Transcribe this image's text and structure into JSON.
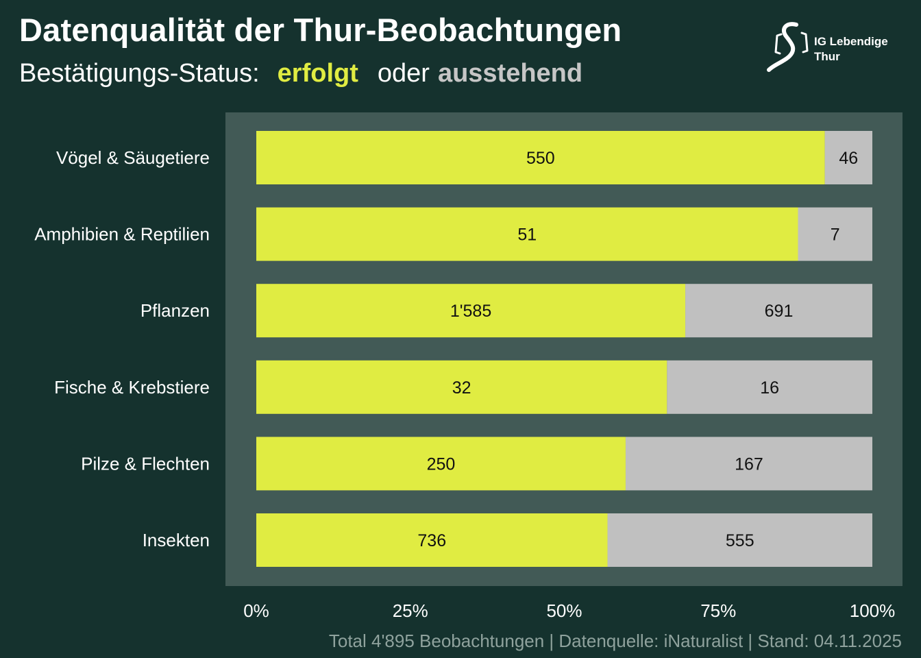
{
  "header": {
    "title": "Datenqualität der Thur-Beobachtungen",
    "subtitle_prefix": "Bestätigungs-Status:",
    "subtitle_confirmed": "erfolgt",
    "subtitle_or": "oder",
    "subtitle_pending": "ausstehend"
  },
  "logo": {
    "line1": "IG Lebendige",
    "line2": "Thur",
    "icon": "river-s-logo-icon"
  },
  "colors": {
    "background": "#15322e",
    "panel": "#425a56",
    "confirmed": "#e0ec42",
    "pending": "#c0c0c0",
    "footer_text": "#8fa29d"
  },
  "chart_data": {
    "type": "bar",
    "orientation": "horizontal",
    "stacked": "percent",
    "categories": [
      "Vögel & Säugetiere",
      "Amphibien & Reptilien",
      "Pflanzen",
      "Fische & Krebstiere",
      "Pilze & Flechten",
      "Insekten"
    ],
    "series": [
      {
        "name": "erfolgt",
        "values": [
          550,
          51,
          1585,
          32,
          250,
          736
        ],
        "labels": [
          "550",
          "51",
          "1'585",
          "32",
          "250",
          "736"
        ]
      },
      {
        "name": "ausstehend",
        "values": [
          46,
          7,
          691,
          16,
          167,
          555
        ],
        "labels": [
          "46",
          "7",
          "691",
          "16",
          "167",
          "555"
        ]
      }
    ],
    "xlim": [
      0,
      100
    ],
    "xticks": [
      "0%",
      "25%",
      "50%",
      "75%",
      "100%"
    ],
    "grid": false
  },
  "footer": {
    "text": "Total 4'895 Beobachtungen | Datenquelle: iNaturalist | Stand: 04.11.2025"
  }
}
